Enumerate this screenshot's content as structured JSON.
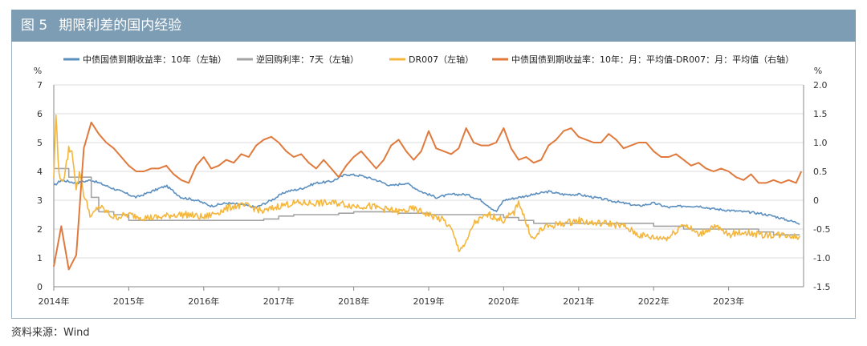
{
  "header": {
    "fig_no": "图 5",
    "title": "期限利差的国内经验"
  },
  "source": "资料来源：Wind",
  "chart_data": {
    "type": "line",
    "title": "期限利差的国内经验",
    "left_unit": "%",
    "right_unit": "%",
    "left_ylim": [
      0,
      7
    ],
    "right_ylim": [
      -1.5,
      2.0
    ],
    "left_ticks": [
      "0",
      "1",
      "2",
      "3",
      "4",
      "5",
      "6",
      "7"
    ],
    "right_ticks": [
      "-1.5",
      "-1.0",
      "-0.5",
      "0",
      "0.5",
      "1.0",
      "1.5",
      "2.0"
    ],
    "x_ticks": [
      "2014年",
      "2015年",
      "2016年",
      "2017年",
      "2018年",
      "2019年",
      "2020年",
      "2021年",
      "2022年",
      "2023年"
    ],
    "xlim": [
      2014.0,
      2024.0
    ],
    "series": [
      {
        "name": "中债国债到期收益率：10年（左轴）",
        "axis": "left",
        "color": "#5b8fbf",
        "x": [
          2014.0,
          2014.1,
          2014.3,
          2014.5,
          2014.7,
          2014.9,
          2015.1,
          2015.3,
          2015.5,
          2015.7,
          2015.9,
          2016.1,
          2016.3,
          2016.5,
          2016.7,
          2016.9,
          2017.1,
          2017.3,
          2017.5,
          2017.7,
          2017.9,
          2018.1,
          2018.3,
          2018.5,
          2018.7,
          2018.9,
          2019.1,
          2019.3,
          2019.5,
          2019.7,
          2019.9,
          2020.0,
          2020.2,
          2020.4,
          2020.6,
          2020.8,
          2021.0,
          2021.2,
          2021.4,
          2021.6,
          2021.8,
          2022.0,
          2022.2,
          2022.4,
          2022.6,
          2022.8,
          2023.0,
          2023.2,
          2023.4,
          2023.6,
          2023.8,
          2023.95
        ],
        "values": [
          3.5,
          3.7,
          3.6,
          3.7,
          3.5,
          3.3,
          3.1,
          3.3,
          3.5,
          3.1,
          3.0,
          2.8,
          2.9,
          2.85,
          2.75,
          3.0,
          3.3,
          3.4,
          3.6,
          3.65,
          3.9,
          3.85,
          3.7,
          3.5,
          3.6,
          3.3,
          3.1,
          3.2,
          3.2,
          3.0,
          2.6,
          3.0,
          3.1,
          3.2,
          3.3,
          3.2,
          3.2,
          3.1,
          3.0,
          2.9,
          2.8,
          2.9,
          2.75,
          2.8,
          2.8,
          2.7,
          2.65,
          2.6,
          2.55,
          2.45,
          2.3,
          2.2
        ]
      },
      {
        "name": "逆回购利率：7天（左轴）",
        "axis": "left",
        "color": "#a3a3a3",
        "x": [
          2014.0,
          2014.2,
          2014.5,
          2014.6,
          2014.8,
          2015.0,
          2015.2,
          2015.4,
          2015.6,
          2015.8,
          2016.0,
          2016.2,
          2016.4,
          2016.6,
          2016.8,
          2017.0,
          2017.2,
          2017.4,
          2017.6,
          2017.8,
          2018.0,
          2018.2,
          2018.4,
          2018.6,
          2018.8,
          2019.0,
          2019.2,
          2019.4,
          2019.6,
          2019.8,
          2020.0,
          2020.2,
          2020.4,
          2020.6,
          2020.8,
          2021.0,
          2021.2,
          2021.4,
          2021.6,
          2021.8,
          2022.0,
          2022.2,
          2022.4,
          2022.6,
          2022.8,
          2023.0,
          2023.2,
          2023.4,
          2023.6,
          2023.8,
          2023.95
        ],
        "values": [
          4.1,
          3.8,
          3.1,
          2.6,
          2.5,
          2.3,
          2.3,
          2.3,
          2.3,
          2.3,
          2.3,
          2.3,
          2.3,
          2.3,
          2.35,
          2.45,
          2.5,
          2.5,
          2.5,
          2.55,
          2.6,
          2.6,
          2.6,
          2.55,
          2.55,
          2.5,
          2.5,
          2.5,
          2.5,
          2.5,
          2.4,
          2.3,
          2.2,
          2.2,
          2.2,
          2.2,
          2.2,
          2.2,
          2.2,
          2.2,
          2.1,
          2.1,
          2.0,
          2.0,
          2.0,
          2.0,
          2.0,
          1.9,
          1.8,
          1.8,
          1.8
        ]
      },
      {
        "name": "DR007（左轴）",
        "axis": "left",
        "color": "#f4b63c",
        "x": [
          2014.0,
          2014.03,
          2014.06,
          2014.1,
          2014.15,
          2014.2,
          2014.25,
          2014.3,
          2014.35,
          2014.4,
          2014.5,
          2014.6,
          2014.8,
          2015.0,
          2015.2,
          2015.4,
          2015.6,
          2015.8,
          2016.0,
          2016.2,
          2016.4,
          2016.6,
          2016.8,
          2017.0,
          2017.2,
          2017.4,
          2017.6,
          2017.8,
          2018.0,
          2018.2,
          2018.4,
          2018.6,
          2018.8,
          2019.0,
          2019.2,
          2019.3,
          2019.4,
          2019.5,
          2019.6,
          2019.8,
          2020.0,
          2020.15,
          2020.2,
          2020.3,
          2020.4,
          2020.5,
          2020.6,
          2020.8,
          2021.0,
          2021.2,
          2021.4,
          2021.6,
          2021.8,
          2022.0,
          2022.2,
          2022.4,
          2022.6,
          2022.8,
          2023.0,
          2023.2,
          2023.4,
          2023.6,
          2023.8,
          2023.95
        ],
        "values": [
          3.8,
          6.1,
          4.2,
          3.6,
          3.9,
          4.8,
          4.6,
          3.4,
          4.0,
          3.2,
          2.4,
          2.8,
          2.4,
          2.5,
          2.4,
          2.4,
          2.5,
          2.5,
          2.4,
          2.6,
          2.8,
          2.8,
          2.6,
          2.8,
          2.9,
          2.9,
          2.9,
          2.9,
          2.8,
          2.8,
          2.7,
          2.6,
          2.7,
          2.5,
          2.3,
          2.0,
          1.3,
          1.5,
          2.2,
          2.5,
          2.3,
          2.6,
          3.0,
          2.2,
          1.6,
          2.0,
          2.1,
          2.2,
          2.3,
          2.2,
          2.2,
          2.1,
          1.8,
          1.7,
          1.7,
          2.2,
          1.8,
          2.1,
          1.8,
          1.9,
          1.8,
          1.8,
          1.8,
          1.7
        ]
      },
      {
        "name": "中债国债到期收益率：10年：月：平均值-DR007：月：平均值（右轴）",
        "axis": "right",
        "color": "#e07a3c",
        "x": [
          2014.0,
          2014.1,
          2014.2,
          2014.3,
          2014.4,
          2014.5,
          2014.6,
          2014.7,
          2014.8,
          2014.9,
          2015.0,
          2015.1,
          2015.2,
          2015.3,
          2015.4,
          2015.5,
          2015.6,
          2015.7,
          2015.8,
          2015.9,
          2016.0,
          2016.1,
          2016.2,
          2016.3,
          2016.4,
          2016.5,
          2016.6,
          2016.7,
          2016.8,
          2016.9,
          2017.0,
          2017.1,
          2017.2,
          2017.3,
          2017.4,
          2017.5,
          2017.6,
          2017.7,
          2017.8,
          2017.9,
          2018.0,
          2018.1,
          2018.2,
          2018.3,
          2018.4,
          2018.5,
          2018.6,
          2018.7,
          2018.8,
          2018.9,
          2019.0,
          2019.1,
          2019.2,
          2019.3,
          2019.4,
          2019.5,
          2019.6,
          2019.7,
          2019.8,
          2019.9,
          2020.0,
          2020.1,
          2020.2,
          2020.3,
          2020.4,
          2020.5,
          2020.6,
          2020.7,
          2020.8,
          2020.9,
          2021.0,
          2021.1,
          2021.2,
          2021.3,
          2021.4,
          2021.5,
          2021.6,
          2021.7,
          2021.8,
          2021.9,
          2022.0,
          2022.1,
          2022.2,
          2022.3,
          2022.4,
          2022.5,
          2022.6,
          2022.7,
          2022.8,
          2022.9,
          2023.0,
          2023.1,
          2023.2,
          2023.3,
          2023.4,
          2023.5,
          2023.6,
          2023.7,
          2023.8,
          2023.9,
          2023.97
        ],
        "values": [
          -1.15,
          -0.45,
          -1.2,
          -0.95,
          0.9,
          1.35,
          1.15,
          1.0,
          0.9,
          0.75,
          0.6,
          0.5,
          0.5,
          0.55,
          0.55,
          0.6,
          0.45,
          0.35,
          0.3,
          0.6,
          0.75,
          0.55,
          0.6,
          0.7,
          0.65,
          0.8,
          0.75,
          0.95,
          1.05,
          1.1,
          1.0,
          0.85,
          0.75,
          0.8,
          0.65,
          0.55,
          0.7,
          0.55,
          0.4,
          0.6,
          0.75,
          0.85,
          0.7,
          0.55,
          0.7,
          0.95,
          1.05,
          0.85,
          0.7,
          0.85,
          1.2,
          0.9,
          0.85,
          0.8,
          0.9,
          1.25,
          1.0,
          0.95,
          0.95,
          1.0,
          1.25,
          0.9,
          0.7,
          0.75,
          0.65,
          0.7,
          0.95,
          1.05,
          1.2,
          1.25,
          1.1,
          1.05,
          1.0,
          1.0,
          1.15,
          1.05,
          0.9,
          0.95,
          1.0,
          1.0,
          0.85,
          0.75,
          0.75,
          0.8,
          0.7,
          0.6,
          0.65,
          0.55,
          0.5,
          0.55,
          0.5,
          0.4,
          0.35,
          0.45,
          0.3,
          0.3,
          0.35,
          0.3,
          0.35,
          0.3,
          0.5
        ]
      }
    ]
  }
}
